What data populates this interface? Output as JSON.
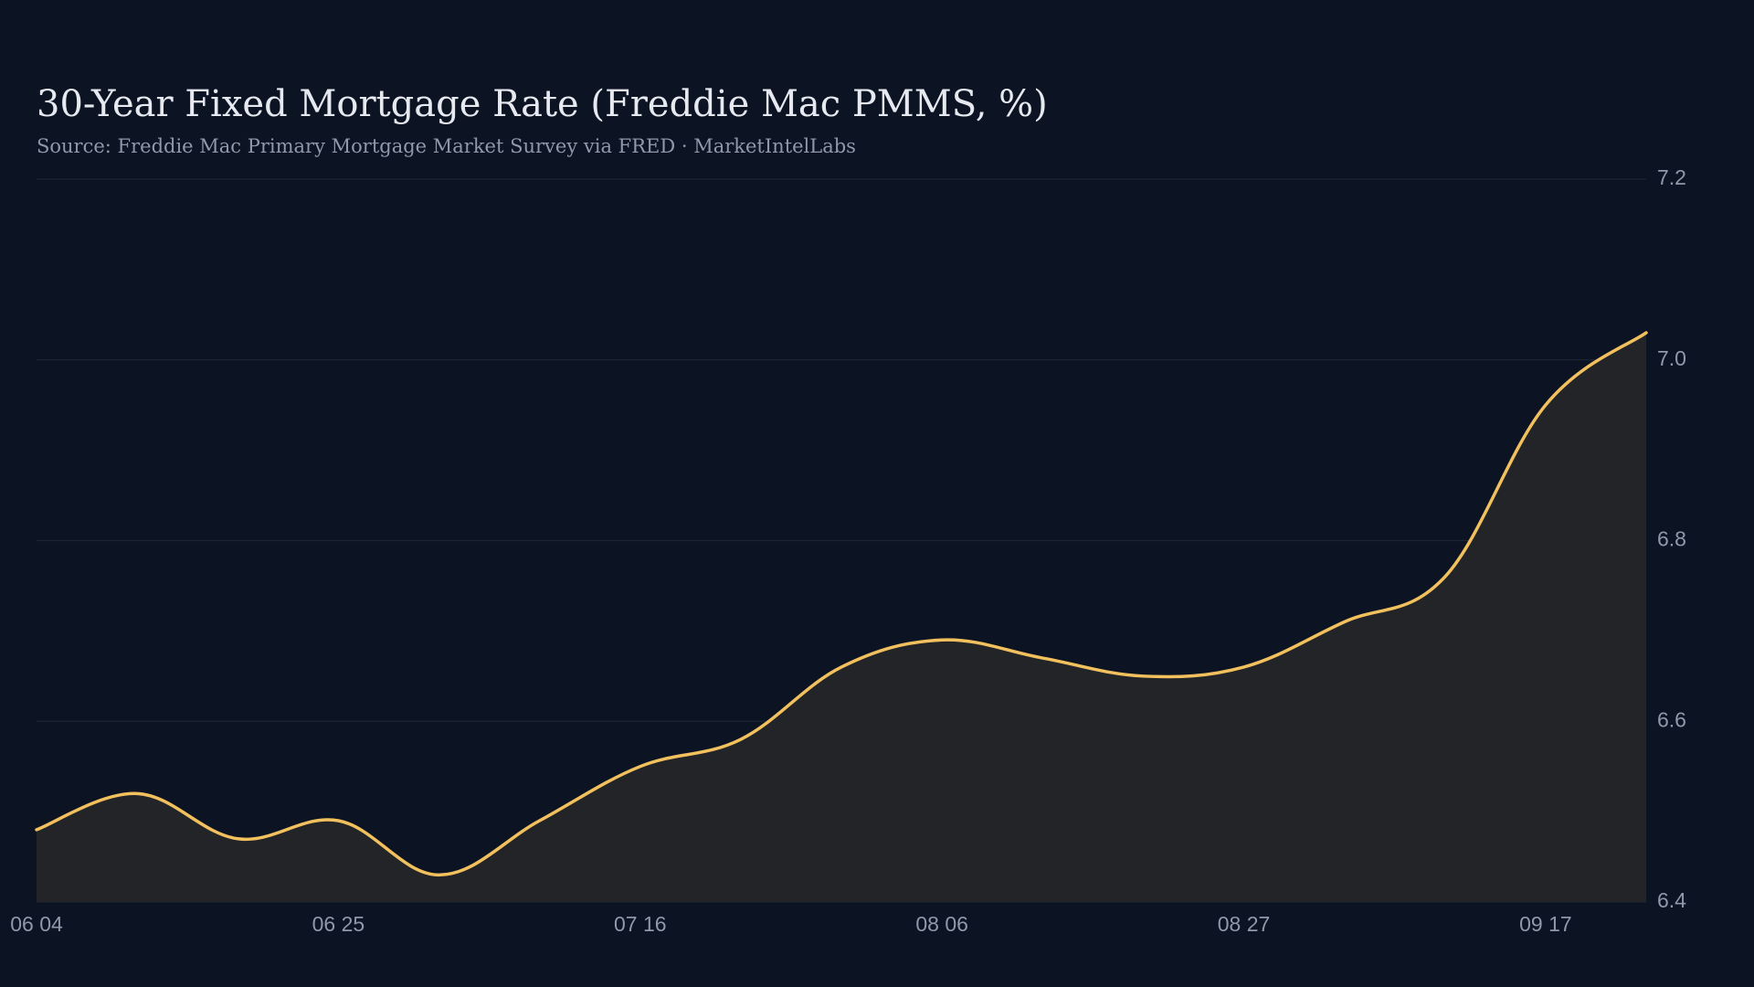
{
  "title": "30-Year Fixed Mortgage Rate (Freddie Mac PMMS, %)",
  "subtitle": "Source: Freddie Mac Primary Mortgage Market Survey via FRED · MarketIntelLabs",
  "colors": {
    "background": "#0c1322",
    "line": "#f2c15e",
    "area": "#222428",
    "grid": "#1c2637",
    "tick_text": "#8f99ab",
    "title_text": "#e6e9f0"
  },
  "chart_data": {
    "type": "area",
    "title": "30-Year Fixed Mortgage Rate (Freddie Mac PMMS, %)",
    "subtitle": "Source: Freddie Mac Primary Mortgage Market Survey via FRED · MarketIntelLabs",
    "xlabel": "",
    "ylabel": "",
    "y_axis_side": "right",
    "grid": "horizontal",
    "legend": "none",
    "ylim": [
      6.4,
      7.2
    ],
    "y_ticks": [
      "6.4",
      "6.6",
      "6.8",
      "7.0",
      "7.2"
    ],
    "x_ticks": [
      "06 04",
      "06 25",
      "07 16",
      "08 06",
      "08 27",
      "09 17"
    ],
    "x": [
      "06 04",
      "06 11",
      "06 18",
      "06 25",
      "07 02",
      "07 09",
      "07 16",
      "07 23",
      "07 30",
      "08 06",
      "08 13",
      "08 20",
      "08 27",
      "09 03",
      "09 10",
      "09 17",
      "09 24"
    ],
    "series": [
      {
        "values": [
          6.48,
          6.52,
          6.47,
          6.49,
          6.43,
          6.49,
          6.55,
          6.58,
          6.66,
          6.69,
          6.67,
          6.65,
          6.66,
          6.71,
          6.76,
          6.95,
          7.03
        ]
      }
    ]
  }
}
